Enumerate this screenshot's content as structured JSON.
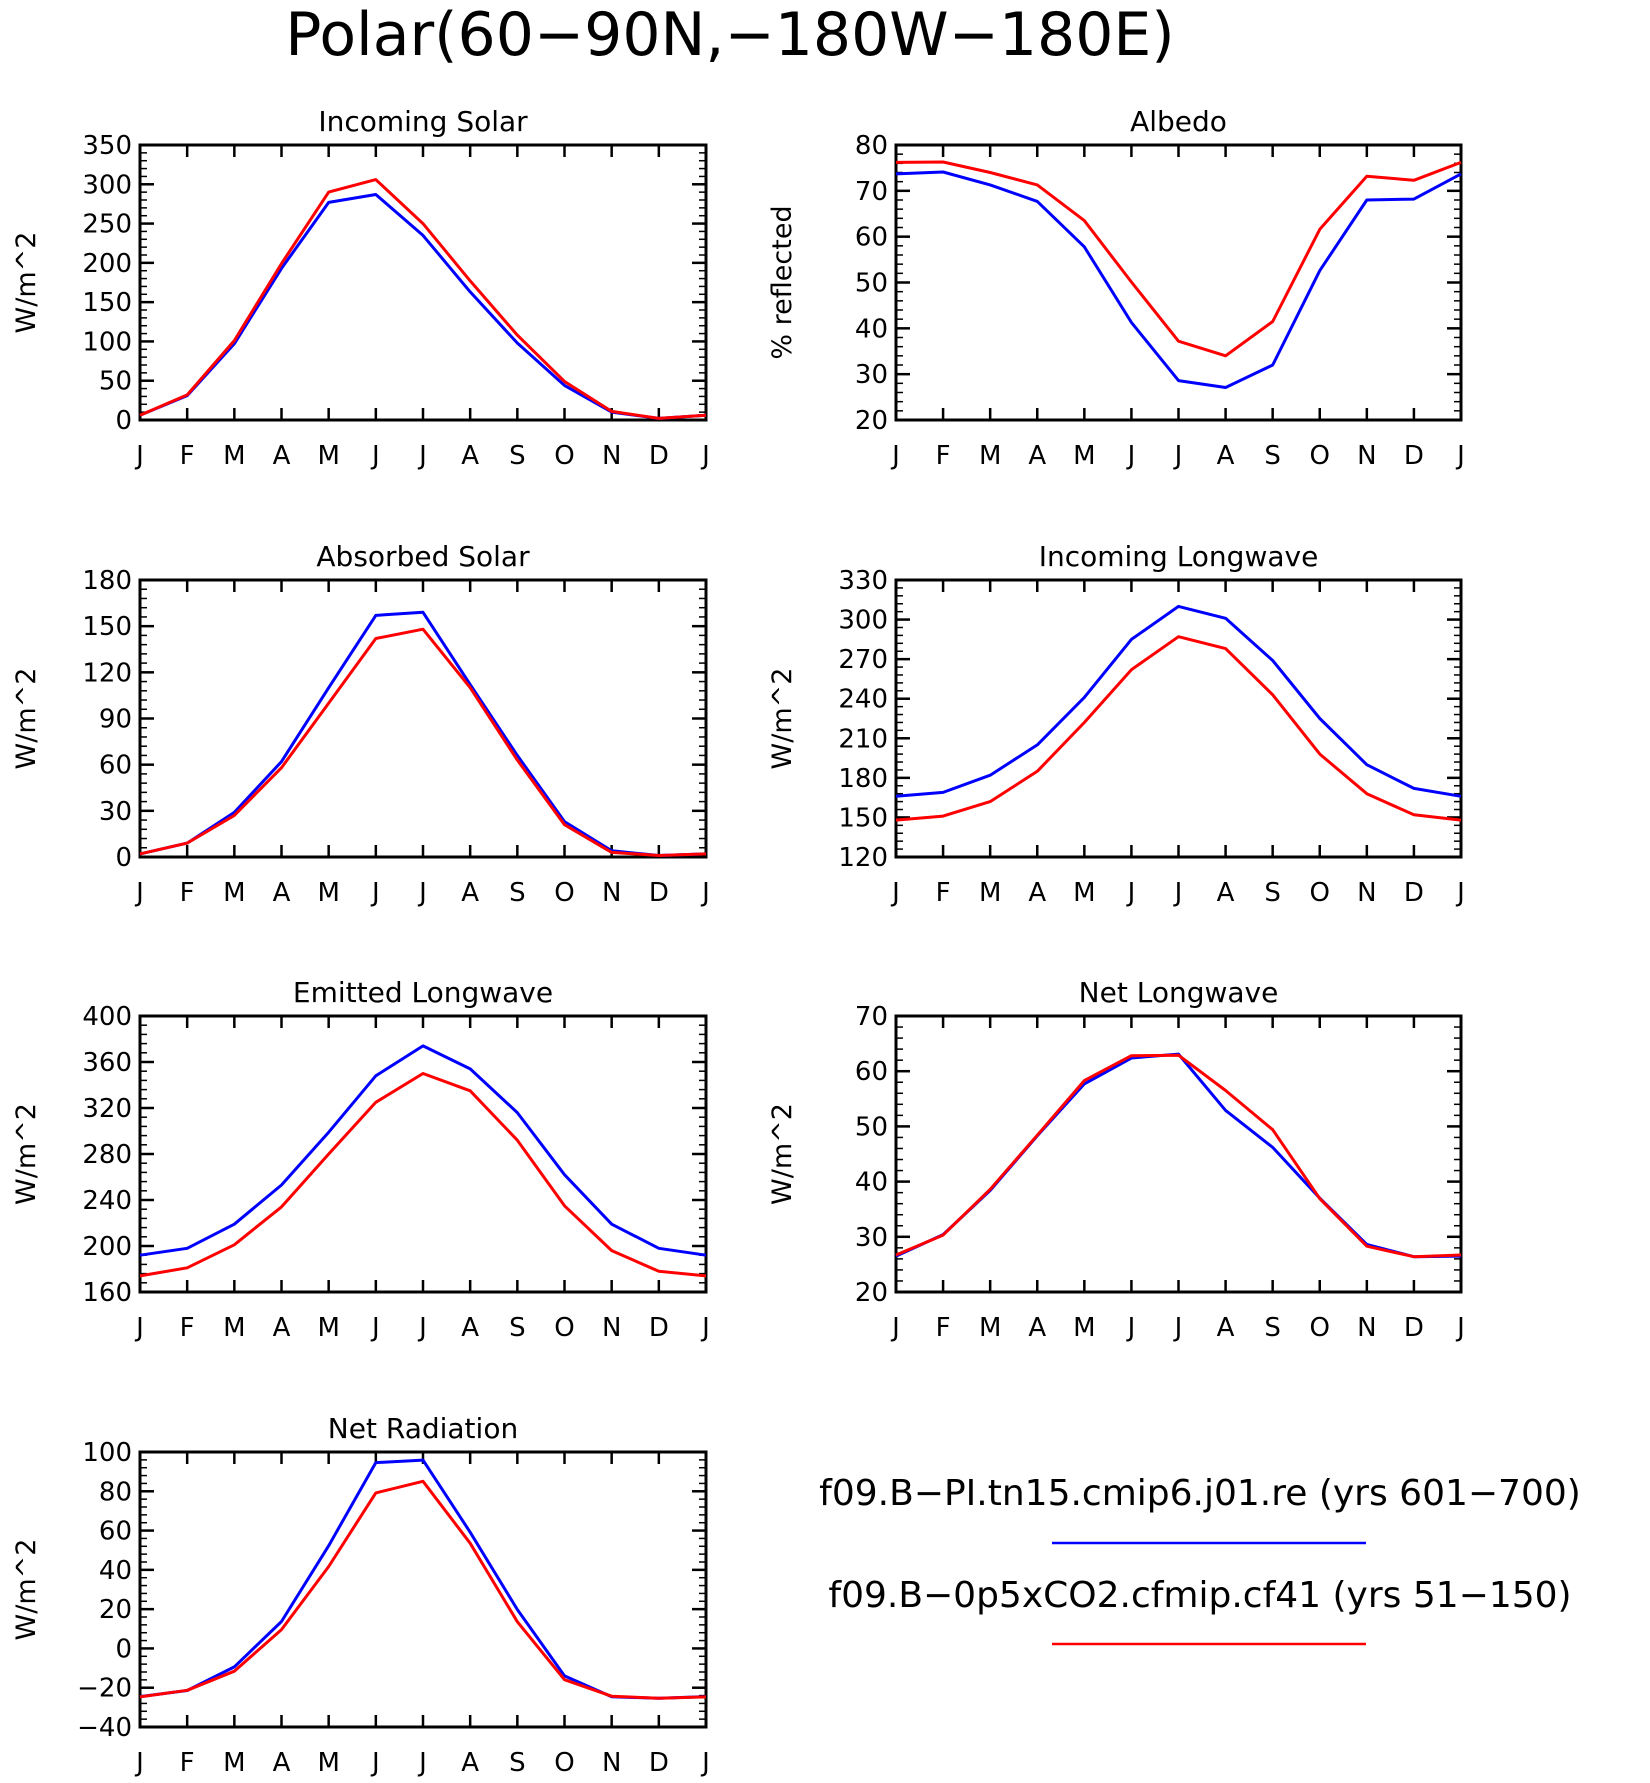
{
  "figure": {
    "title": "Polar(60−90N,−180W−180E)"
  },
  "colors": {
    "series_1": "#0000ff",
    "series_2": "#ff0000"
  },
  "legend": {
    "entries": [
      {
        "label": "f09.B−PI.tn15.cmip6.j01.re (yrs 601−700)",
        "color": "#0000ff"
      },
      {
        "label": "f09.B−0p5xCO2.cfmip.cf41 (yrs 51−150)",
        "color": "#ff0000"
      }
    ]
  },
  "chart_data": [
    {
      "type": "line",
      "title": "Incoming Solar",
      "ylabel": "W/m^2",
      "xlabel": "",
      "categories": [
        "J",
        "F",
        "M",
        "A",
        "M",
        "J",
        "J",
        "A",
        "S",
        "O",
        "N",
        "D",
        "J"
      ],
      "ylim": [
        0,
        350
      ],
      "yticks": [
        0,
        50,
        100,
        150,
        200,
        250,
        300,
        350
      ],
      "grid": false,
      "series": [
        {
          "color": "#0000ff",
          "values": [
            6,
            31,
            97,
            193,
            277,
            287,
            235,
            163,
            98,
            44,
            10,
            2,
            6
          ]
        },
        {
          "color": "#ff0000",
          "values": [
            6,
            32,
            101,
            199,
            290,
            306,
            250,
            177,
            108,
            49,
            11,
            2,
            6
          ]
        }
      ]
    },
    {
      "type": "line",
      "title": "Albedo",
      "ylabel": "% reflected",
      "xlabel": "",
      "categories": [
        "J",
        "F",
        "M",
        "A",
        "M",
        "J",
        "J",
        "A",
        "S",
        "O",
        "N",
        "D",
        "J"
      ],
      "ylim": [
        20,
        80
      ],
      "yticks": [
        20,
        30,
        40,
        50,
        60,
        70,
        80
      ],
      "grid": false,
      "series": [
        {
          "color": "#0000ff",
          "values": [
            73.7,
            74.1,
            71.3,
            67.7,
            57.8,
            41.3,
            28.6,
            27.1,
            32,
            52.6,
            68,
            68.2,
            73.7
          ]
        },
        {
          "color": "#ff0000",
          "values": [
            76.2,
            76.3,
            74,
            71.3,
            63.5,
            50.1,
            37.2,
            34,
            41.5,
            61.6,
            73.2,
            72.3,
            76.2
          ]
        }
      ]
    },
    {
      "type": "line",
      "title": "Absorbed Solar",
      "ylabel": "W/m^2",
      "xlabel": "",
      "categories": [
        "J",
        "F",
        "M",
        "A",
        "M",
        "J",
        "J",
        "A",
        "S",
        "O",
        "N",
        "D",
        "J"
      ],
      "ylim": [
        0,
        180
      ],
      "yticks": [
        0,
        30,
        60,
        90,
        120,
        150,
        180
      ],
      "grid": false,
      "series": [
        {
          "color": "#0000ff",
          "values": [
            2,
            9,
            29,
            62,
            110,
            157,
            159,
            112,
            66,
            23,
            4,
            1,
            2
          ]
        },
        {
          "color": "#ff0000",
          "values": [
            2,
            9,
            27,
            58,
            100,
            142,
            148,
            110,
            63,
            21,
            3,
            1,
            2
          ]
        }
      ]
    },
    {
      "type": "line",
      "title": "Incoming Longwave",
      "ylabel": "W/m^2",
      "xlabel": "",
      "categories": [
        "J",
        "F",
        "M",
        "A",
        "M",
        "J",
        "J",
        "A",
        "S",
        "O",
        "N",
        "D",
        "J"
      ],
      "ylim": [
        120,
        330
      ],
      "yticks": [
        120,
        150,
        180,
        210,
        240,
        270,
        300,
        330
      ],
      "grid": false,
      "series": [
        {
          "color": "#0000ff",
          "values": [
            166,
            169,
            182,
            205,
            241,
            285,
            310,
            301,
            269,
            225,
            190,
            172,
            166
          ]
        },
        {
          "color": "#ff0000",
          "values": [
            148,
            151,
            162,
            185,
            222,
            262,
            287,
            278,
            243,
            198,
            168,
            152,
            148
          ]
        }
      ]
    },
    {
      "type": "line",
      "title": "Emitted Longwave",
      "ylabel": "W/m^2",
      "xlabel": "",
      "categories": [
        "J",
        "F",
        "M",
        "A",
        "M",
        "J",
        "J",
        "A",
        "S",
        "O",
        "N",
        "D",
        "J"
      ],
      "ylim": [
        160,
        400
      ],
      "yticks": [
        160,
        200,
        240,
        280,
        320,
        360,
        400
      ],
      "grid": false,
      "series": [
        {
          "color": "#0000ff",
          "values": [
            192,
            198,
            219,
            253,
            299,
            348,
            374,
            354,
            316,
            262,
            219,
            198,
            192
          ]
        },
        {
          "color": "#ff0000",
          "values": [
            174,
            181,
            201,
            234,
            280,
            325,
            350,
            335,
            292,
            235,
            196,
            178,
            174
          ]
        }
      ]
    },
    {
      "type": "line",
      "title": "Net Longwave",
      "ylabel": "W/m^2",
      "xlabel": "",
      "categories": [
        "J",
        "F",
        "M",
        "A",
        "M",
        "J",
        "J",
        "A",
        "S",
        "O",
        "N",
        "D",
        "J"
      ],
      "ylim": [
        20,
        70
      ],
      "yticks": [
        20,
        30,
        40,
        50,
        60,
        70
      ],
      "grid": false,
      "series": [
        {
          "color": "#0000ff",
          "values": [
            26.5,
            30.4,
            38.4,
            48.3,
            57.7,
            62.4,
            63.1,
            52.9,
            46.2,
            37,
            28.6,
            26.4,
            26.5
          ]
        },
        {
          "color": "#ff0000",
          "values": [
            26.7,
            30.3,
            38.6,
            48.4,
            58.3,
            62.8,
            62.9,
            56.5,
            49.4,
            36.9,
            28.3,
            26.4,
            26.7
          ]
        }
      ]
    },
    {
      "type": "line",
      "title": "Net Radiation",
      "ylabel": "W/m^2",
      "xlabel": "",
      "categories": [
        "J",
        "F",
        "M",
        "A",
        "M",
        "J",
        "J",
        "A",
        "S",
        "O",
        "N",
        "D",
        "J"
      ],
      "ylim": [
        -40,
        100
      ],
      "yticks": [
        -40,
        -20,
        0,
        20,
        40,
        60,
        80,
        100
      ],
      "grid": false,
      "series": [
        {
          "color": "#0000ff",
          "values": [
            -24.5,
            -21.4,
            -9.4,
            13.7,
            52.3,
            94.6,
            95.9,
            59.1,
            19.8,
            -14,
            -24.6,
            -25.4,
            -24.5
          ]
        },
        {
          "color": "#ff0000",
          "values": [
            -24.7,
            -21.3,
            -11.6,
            9.6,
            41.7,
            79.2,
            85.1,
            53.5,
            13.6,
            -15.9,
            -24.3,
            -25.4,
            -24.7
          ]
        }
      ]
    }
  ]
}
